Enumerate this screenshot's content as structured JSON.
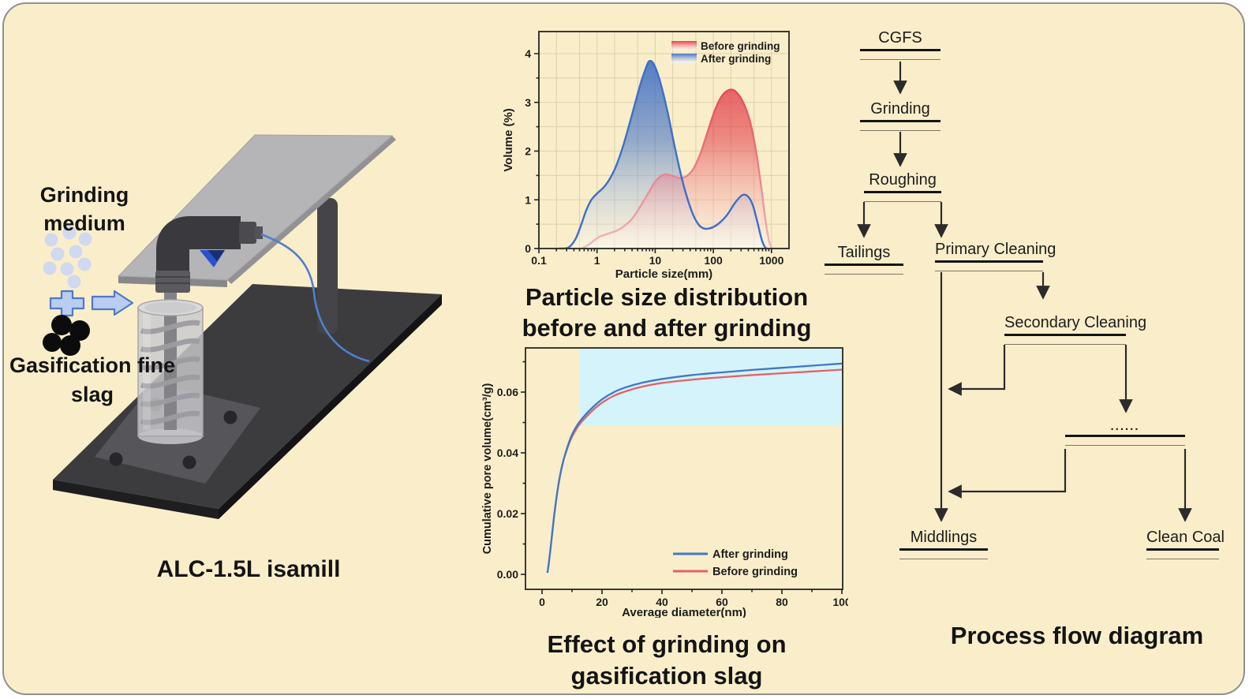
{
  "machine": {
    "grinding_medium_label": "Grinding medium",
    "gasification_label": "Gasification fine slag",
    "model_label": "ALC-1.5L isamill"
  },
  "captions": {
    "psd_line1": "Particle size distribution",
    "psd_line2": "before and after grinding",
    "pore_line1": "Effect of grinding on",
    "pore_line2": "gasification slag",
    "flow_title": "Process flow diagram"
  },
  "colors": {
    "background": "#faeeca",
    "blue_series": "#3e6fc6",
    "red_series": "#e23946",
    "blue_line2": "#3f78c8",
    "red_line2": "#e06368",
    "highlight_cyan": "#d5f3fa",
    "grid": "#ddd0a8",
    "flow_line": "#2b2b2b",
    "cable_blue": "#4f80cf"
  },
  "chart_data": [
    {
      "type": "area",
      "title": "Particle size distribution before and after grinding",
      "xlabel": "Particle size(mm)",
      "ylabel": "Volume (%)",
      "xscale": "log",
      "xlim": [
        0.1,
        2000
      ],
      "ylim": [
        0,
        4.45
      ],
      "grid": true,
      "legend_position": "top-right",
      "xticks": {
        "values": [
          0.1,
          1,
          10,
          100,
          1000
        ],
        "labels": [
          "0.1",
          "1",
          "10",
          "100",
          "1000"
        ]
      },
      "yticks": {
        "values": [
          0,
          1,
          2,
          3,
          4
        ],
        "labels": [
          "0",
          "1",
          "2",
          "3",
          "4"
        ]
      },
      "legend": [
        {
          "label": "Before grinding",
          "color": "#e23946"
        },
        {
          "label": "After grinding",
          "color": "#3e6fc6"
        }
      ],
      "series": [
        {
          "name": "After grinding",
          "color": "#3e6fc6",
          "points": [
            [
              0.22,
              0
            ],
            [
              0.32,
              0.02
            ],
            [
              0.42,
              0.18
            ],
            [
              0.52,
              0.45
            ],
            [
              0.65,
              0.78
            ],
            [
              0.8,
              1.0
            ],
            [
              1,
              1.13
            ],
            [
              1.4,
              1.3
            ],
            [
              2,
              1.62
            ],
            [
              2.8,
              2.1
            ],
            [
              4,
              2.75
            ],
            [
              5.5,
              3.35
            ],
            [
              7,
              3.72
            ],
            [
              8,
              3.85
            ],
            [
              9.5,
              3.78
            ],
            [
              12,
              3.45
            ],
            [
              16,
              2.85
            ],
            [
              22,
              2.05
            ],
            [
              30,
              1.35
            ],
            [
              42,
              0.78
            ],
            [
              55,
              0.5
            ],
            [
              70,
              0.41
            ],
            [
              90,
              0.42
            ],
            [
              120,
              0.5
            ],
            [
              170,
              0.68
            ],
            [
              240,
              0.95
            ],
            [
              320,
              1.1
            ],
            [
              400,
              1.06
            ],
            [
              480,
              0.88
            ],
            [
              570,
              0.55
            ],
            [
              680,
              0.18
            ],
            [
              780,
              0.02
            ],
            [
              850,
              0
            ]
          ]
        },
        {
          "name": "Before grinding",
          "color": "#e23946",
          "points": [
            [
              0.55,
              0
            ],
            [
              0.7,
              0.07
            ],
            [
              0.9,
              0.17
            ],
            [
              1.1,
              0.24
            ],
            [
              1.5,
              0.3
            ],
            [
              2.2,
              0.37
            ],
            [
              3,
              0.47
            ],
            [
              4.2,
              0.64
            ],
            [
              6,
              0.93
            ],
            [
              8,
              1.18
            ],
            [
              10,
              1.37
            ],
            [
              13,
              1.5
            ],
            [
              16,
              1.52
            ],
            [
              20,
              1.49
            ],
            [
              26,
              1.45
            ],
            [
              34,
              1.48
            ],
            [
              45,
              1.63
            ],
            [
              60,
              1.95
            ],
            [
              80,
              2.4
            ],
            [
              105,
              2.82
            ],
            [
              135,
              3.1
            ],
            [
              175,
              3.24
            ],
            [
              225,
              3.25
            ],
            [
              285,
              3.12
            ],
            [
              360,
              2.88
            ],
            [
              450,
              2.5
            ],
            [
              550,
              1.95
            ],
            [
              660,
              1.3
            ],
            [
              780,
              0.62
            ],
            [
              900,
              0.18
            ],
            [
              1000,
              0.02
            ],
            [
              1060,
              0
            ]
          ]
        }
      ]
    },
    {
      "type": "line",
      "title": "Effect of grinding on gasification slag",
      "xlabel": "Average diameter(nm)",
      "ylabel": "Cumulative pore volume(cm³/g)",
      "xscale": "linear",
      "xlim": [
        -5.5,
        100.3
      ],
      "ylim": [
        -0.005,
        0.0745
      ],
      "grid": false,
      "legend_position": "bottom-right",
      "xticks": {
        "values": [
          0,
          20,
          40,
          60,
          80,
          100
        ],
        "labels": [
          "0",
          "20",
          "40",
          "60",
          "80",
          "100"
        ]
      },
      "yticks": {
        "values": [
          0,
          0.02,
          0.04,
          0.06
        ],
        "labels": [
          "0.00",
          "0.02",
          "0.04",
          "0.06"
        ]
      },
      "highlight_region": {
        "x0": 12.6,
        "x1": 100.3,
        "y0": 0.049,
        "y1": 0.0745,
        "color": "#d5f3fa"
      },
      "legend": [
        {
          "label": "After grinding",
          "color": "#3f78c8"
        },
        {
          "label": "Before grinding",
          "color": "#e06368"
        }
      ],
      "series": [
        {
          "name": "After grinding",
          "color": "#3f78c8",
          "points": [
            [
              1.8,
              0.0005
            ],
            [
              2.3,
              0.004
            ],
            [
              3,
              0.01
            ],
            [
              4,
              0.019
            ],
            [
              5,
              0.0265
            ],
            [
              6,
              0.0325
            ],
            [
              7,
              0.037
            ],
            [
              8,
              0.0405
            ],
            [
              9,
              0.0435
            ],
            [
              10,
              0.046
            ],
            [
              12,
              0.0495
            ],
            [
              14,
              0.052
            ],
            [
              17,
              0.0551
            ],
            [
              20,
              0.0576
            ],
            [
              24,
              0.06
            ],
            [
              28,
              0.0616
            ],
            [
              33,
              0.063
            ],
            [
              40,
              0.0643
            ],
            [
              50,
              0.0656
            ],
            [
              60,
              0.0665
            ],
            [
              70,
              0.0673
            ],
            [
              80,
              0.068
            ],
            [
              90,
              0.0687
            ],
            [
              100,
              0.0694
            ]
          ]
        },
        {
          "name": "Before grinding",
          "color": "#e06368",
          "points": [
            [
              1.8,
              0.0005
            ],
            [
              2.3,
              0.004
            ],
            [
              3,
              0.01
            ],
            [
              4,
              0.019
            ],
            [
              5,
              0.0265
            ],
            [
              6,
              0.0325
            ],
            [
              7,
              0.037
            ],
            [
              8,
              0.0402
            ],
            [
              9,
              0.043
            ],
            [
              10,
              0.0453
            ],
            [
              12,
              0.0487
            ],
            [
              14,
              0.0511
            ],
            [
              17,
              0.0541
            ],
            [
              20,
              0.0565
            ],
            [
              24,
              0.0588
            ],
            [
              28,
              0.0603
            ],
            [
              33,
              0.0617
            ],
            [
              40,
              0.063
            ],
            [
              50,
              0.0641
            ],
            [
              60,
              0.0649
            ],
            [
              70,
              0.0656
            ],
            [
              80,
              0.0662
            ],
            [
              90,
              0.0668
            ],
            [
              100,
              0.0674
            ]
          ]
        }
      ]
    }
  ],
  "flow": {
    "nodes": [
      {
        "id": "cgfs",
        "label": "CGFS"
      },
      {
        "id": "grinding",
        "label": "Grinding"
      },
      {
        "id": "roughing",
        "label": "Roughing"
      },
      {
        "id": "tailings",
        "label": "Tailings"
      },
      {
        "id": "primary-cleaning",
        "label": "Primary Cleaning"
      },
      {
        "id": "secondary-cleaning",
        "label": "Secondary Cleaning"
      },
      {
        "id": "ellipsis-stages",
        "label": "......"
      },
      {
        "id": "middlings",
        "label": "Middlings"
      },
      {
        "id": "clean-coal",
        "label": "Clean Coal"
      }
    ]
  }
}
